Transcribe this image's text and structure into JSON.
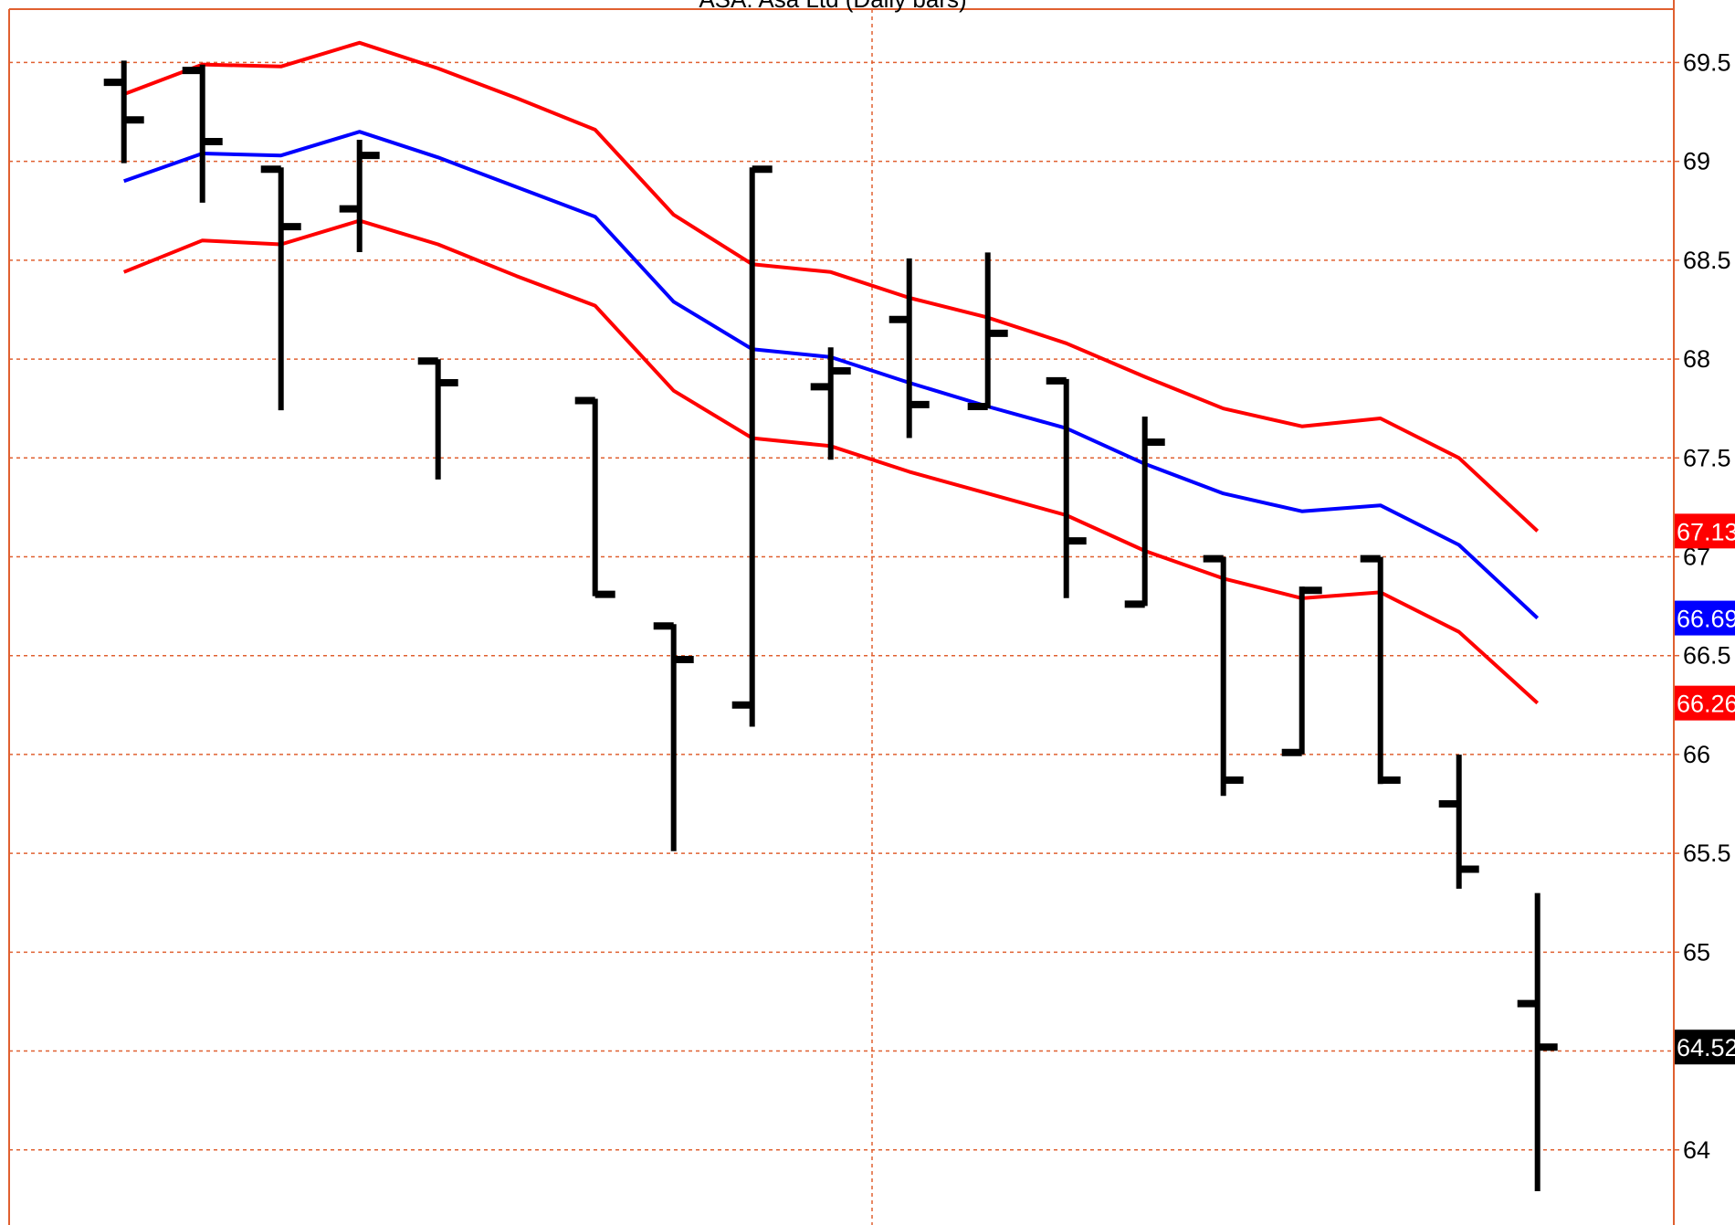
{
  "chart_data": {
    "type": "ohlc",
    "title": "ASA: Asa Ltd (Daily bars)",
    "categories": [
      null,
      null,
      null,
      null,
      null,
      null,
      null,
      null,
      null,
      null,
      null,
      null,
      null,
      null,
      null,
      null,
      null,
      null,
      null
    ],
    "ohlc": {
      "open": [
        69.4,
        69.46,
        68.96,
        68.76,
        67.99,
        null,
        67.79,
        66.65,
        66.25,
        67.86,
        68.2,
        67.76,
        67.89,
        66.76,
        66.99,
        66.01,
        66.99,
        65.75,
        64.74
      ],
      "high": [
        69.5,
        69.48,
        68.96,
        69.1,
        67.99,
        null,
        67.79,
        66.65,
        68.96,
        68.05,
        68.5,
        68.53,
        67.89,
        67.7,
        66.99,
        66.84,
        66.99,
        65.99,
        65.29
      ],
      "low": [
        69.0,
        68.8,
        67.75,
        68.55,
        67.4,
        null,
        66.81,
        65.52,
        66.15,
        67.5,
        67.61,
        67.76,
        66.8,
        66.76,
        65.8,
        66.01,
        65.86,
        65.33,
        63.8
      ],
      "close": [
        69.21,
        69.1,
        68.67,
        69.03,
        67.88,
        null,
        66.81,
        66.48,
        68.96,
        67.94,
        67.77,
        68.13,
        67.08,
        67.58,
        65.87,
        66.83,
        65.87,
        65.42,
        64.52
      ],
      "color": "#000000"
    },
    "series": [
      {
        "color": "#ff0000",
        "values": [
          69.34,
          69.49,
          69.48,
          69.6,
          69.47,
          69.32,
          69.16,
          68.73,
          68.48,
          68.44,
          68.31,
          68.21,
          68.08,
          67.91,
          67.75,
          67.66,
          67.7,
          67.5,
          67.13
        ]
      },
      {
        "color": "#0000ff",
        "values": [
          68.9,
          69.04,
          69.03,
          69.15,
          69.02,
          68.87,
          68.72,
          68.29,
          68.05,
          68.01,
          67.88,
          67.76,
          67.65,
          67.47,
          67.32,
          67.23,
          67.26,
          67.06,
          66.69
        ]
      },
      {
        "color": "#ff0000",
        "values": [
          68.44,
          68.6,
          68.58,
          68.7,
          68.58,
          68.42,
          68.27,
          67.84,
          67.6,
          67.56,
          67.43,
          67.32,
          67.21,
          67.03,
          66.89,
          66.79,
          66.82,
          66.62,
          66.26
        ]
      }
    ],
    "ylim": [
      63.62,
      69.77
    ],
    "yticks": [
      64,
      64.5,
      65,
      65.5,
      66,
      66.5,
      67,
      67.5,
      68,
      68.5,
      69,
      69.5
    ],
    "grid": true,
    "grid_color": "#e06030"
  }
}
